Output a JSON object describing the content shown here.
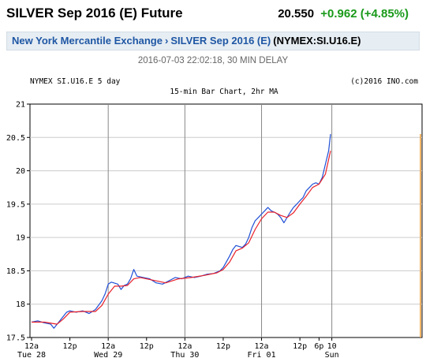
{
  "header": {
    "title": "SILVER Sep 2016 (E) Future",
    "last": "20.550",
    "change": "+0.962 (+4.85%)"
  },
  "breadcrumb": {
    "exchange": "New York Mercantile Exchange",
    "separator": "›",
    "contract": "SILVER Sep 2016 (E)",
    "symbol": "(NYMEX:SI.U16.E)"
  },
  "timestamp": "2016-07-03 22:02:18, 30 MIN DELAY",
  "chart_data": {
    "type": "line",
    "title": "15-min Bar Chart, 2hr MA",
    "header_left": "NYMEX SI.U16.E 5 day",
    "header_right": "(c)2016 INO.com",
    "ylim": [
      17.5,
      21
    ],
    "yticks": [
      "17.5",
      "18",
      "18.5",
      "19",
      "19.5",
      "20",
      "20.5",
      "21"
    ],
    "xlim": [
      0,
      122
    ],
    "xticks": [
      {
        "x": 0,
        "top": "12a",
        "bottom": "Tue 28"
      },
      {
        "x": 12,
        "top": "12p",
        "bottom": ""
      },
      {
        "x": 24,
        "top": "12a",
        "bottom": "Wed 29"
      },
      {
        "x": 36,
        "top": "12p",
        "bottom": ""
      },
      {
        "x": 48,
        "top": "12a",
        "bottom": "Thu 30"
      },
      {
        "x": 60,
        "top": "12p",
        "bottom": ""
      },
      {
        "x": 72,
        "top": "12a",
        "bottom": "Fri 01"
      },
      {
        "x": 84,
        "top": "12p",
        "bottom": ""
      },
      {
        "x": 90,
        "top": "6p",
        "bottom": ""
      },
      {
        "x": 94,
        "top": "10",
        "bottom": "Sun"
      }
    ],
    "day_lines": [
      24,
      48,
      72,
      94
    ],
    "grid": true,
    "series": [
      {
        "color": "#1f4fd6",
        "values": [
          [
            0,
            17.73
          ],
          [
            2,
            17.75
          ],
          [
            4,
            17.72
          ],
          [
            6,
            17.7
          ],
          [
            7,
            17.64
          ],
          [
            8,
            17.7
          ],
          [
            10,
            17.82
          ],
          [
            11,
            17.88
          ],
          [
            12,
            17.9
          ],
          [
            14,
            17.88
          ],
          [
            16,
            17.9
          ],
          [
            18,
            17.86
          ],
          [
            20,
            17.92
          ],
          [
            22,
            18.05
          ],
          [
            23,
            18.15
          ],
          [
            24,
            18.3
          ],
          [
            25,
            18.33
          ],
          [
            27,
            18.3
          ],
          [
            28,
            18.22
          ],
          [
            29,
            18.28
          ],
          [
            30,
            18.3
          ],
          [
            31,
            18.38
          ],
          [
            32,
            18.52
          ],
          [
            33,
            18.42
          ],
          [
            35,
            18.4
          ],
          [
            37,
            18.38
          ],
          [
            39,
            18.32
          ],
          [
            41,
            18.3
          ],
          [
            43,
            18.35
          ],
          [
            45,
            18.4
          ],
          [
            47,
            18.38
          ],
          [
            49,
            18.42
          ],
          [
            51,
            18.4
          ],
          [
            53,
            18.42
          ],
          [
            55,
            18.45
          ],
          [
            57,
            18.46
          ],
          [
            59,
            18.5
          ],
          [
            60,
            18.55
          ],
          [
            62,
            18.72
          ],
          [
            63,
            18.82
          ],
          [
            64,
            18.88
          ],
          [
            66,
            18.85
          ],
          [
            67,
            18.9
          ],
          [
            68,
            19.0
          ],
          [
            69,
            19.15
          ],
          [
            70,
            19.25
          ],
          [
            71,
            19.3
          ],
          [
            72,
            19.35
          ],
          [
            73,
            19.4
          ],
          [
            74,
            19.45
          ],
          [
            75,
            19.4
          ],
          [
            76,
            19.38
          ],
          [
            77,
            19.35
          ],
          [
            78,
            19.3
          ],
          [
            79,
            19.22
          ],
          [
            80,
            19.3
          ],
          [
            81,
            19.38
          ],
          [
            82,
            19.45
          ],
          [
            83,
            19.5
          ],
          [
            84,
            19.55
          ],
          [
            85,
            19.6
          ],
          [
            86,
            19.7
          ],
          [
            87,
            19.75
          ],
          [
            88,
            19.8
          ],
          [
            89,
            19.82
          ],
          [
            90,
            19.8
          ],
          [
            91,
            19.9
          ],
          [
            92,
            20.1
          ],
          [
            93,
            20.3
          ],
          [
            93.6,
            20.55
          ]
        ]
      },
      {
        "color": "#e8202a",
        "values": [
          [
            0,
            17.73
          ],
          [
            4,
            17.73
          ],
          [
            8,
            17.7
          ],
          [
            10,
            17.78
          ],
          [
            12,
            17.88
          ],
          [
            16,
            17.89
          ],
          [
            20,
            17.89
          ],
          [
            22,
            17.98
          ],
          [
            24,
            18.15
          ],
          [
            26,
            18.27
          ],
          [
            28,
            18.27
          ],
          [
            30,
            18.28
          ],
          [
            32,
            18.38
          ],
          [
            34,
            18.4
          ],
          [
            38,
            18.36
          ],
          [
            42,
            18.32
          ],
          [
            46,
            18.38
          ],
          [
            50,
            18.4
          ],
          [
            54,
            18.43
          ],
          [
            58,
            18.47
          ],
          [
            60,
            18.52
          ],
          [
            62,
            18.63
          ],
          [
            64,
            18.8
          ],
          [
            66,
            18.84
          ],
          [
            68,
            18.92
          ],
          [
            70,
            19.12
          ],
          [
            72,
            19.28
          ],
          [
            74,
            19.38
          ],
          [
            76,
            19.38
          ],
          [
            78,
            19.33
          ],
          [
            80,
            19.3
          ],
          [
            82,
            19.37
          ],
          [
            84,
            19.5
          ],
          [
            86,
            19.62
          ],
          [
            88,
            19.75
          ],
          [
            90,
            19.8
          ],
          [
            92,
            19.95
          ],
          [
            93.6,
            20.3
          ]
        ]
      }
    ]
  }
}
